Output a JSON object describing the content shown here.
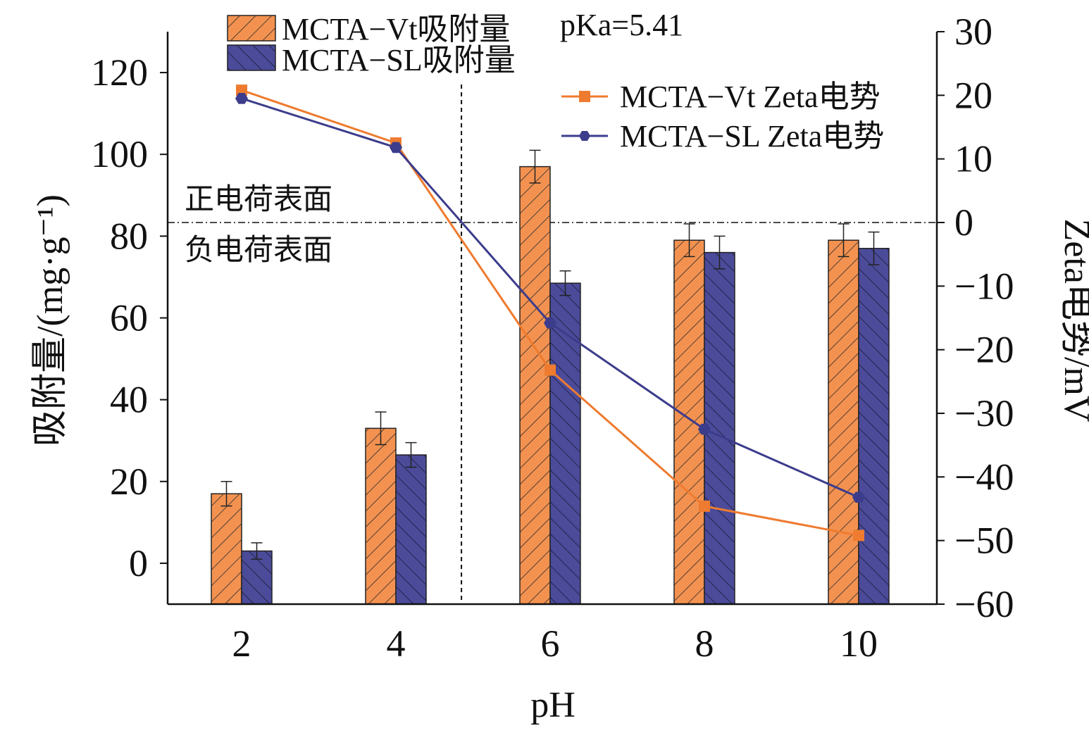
{
  "chart_data": {
    "type": "bar",
    "xlabel": "pH",
    "ylabel_left": "吸附量/(mg·g⁻¹)",
    "ylabel_right": "Zeta电势/mV",
    "categories": [
      "2",
      "4",
      "6",
      "8",
      "10"
    ],
    "x_values": [
      2,
      4,
      6,
      8,
      10
    ],
    "ylim_left": [
      -10,
      130
    ],
    "ylim_right": [
      -60,
      30
    ],
    "yticks_left": [
      0,
      20,
      40,
      60,
      80,
      100,
      120
    ],
    "yticks_right": [
      -60,
      -50,
      -40,
      -30,
      -20,
      -10,
      0,
      10,
      20,
      30
    ],
    "yticks_right_labels": [
      "−60",
      "−50",
      "−40",
      "−30",
      "−20",
      "−10",
      "0",
      "10",
      "20",
      "30"
    ],
    "bar_series": [
      {
        "name": "MCTA−Vt吸附量",
        "values": [
          17,
          33,
          97,
          79,
          79
        ],
        "errors": [
          3,
          4,
          4,
          4,
          4
        ],
        "color": "#f39250"
      },
      {
        "name": "MCTA−SL吸附量",
        "values": [
          3,
          26.5,
          68.5,
          76,
          77
        ],
        "errors": [
          2,
          3,
          3,
          4,
          4
        ],
        "color": "#4b4b9a"
      }
    ],
    "line_series": [
      {
        "name": "MCTA−Vt Zeta电势",
        "values": [
          20.8,
          12.5,
          -23.2,
          -44.6,
          -49.2
        ],
        "color": "#ee7b2f",
        "marker": "square"
      },
      {
        "name": "MCTA−SL Zeta电势",
        "values": [
          19.5,
          11.8,
          -15.8,
          -32.5,
          -43.2
        ],
        "color": "#3c3c8c",
        "marker": "hexagon"
      }
    ],
    "reference_lines": [
      {
        "orientation": "vertical",
        "x": 4.85,
        "style": "dashed"
      },
      {
        "orientation": "horizontal",
        "zeta": 0,
        "style": "dash-dot"
      }
    ],
    "annotations": {
      "pka": "pKa=5.41",
      "positive_surface": "正电荷表面",
      "negative_surface": "负电荷表面"
    },
    "grid": false,
    "legend_bars_position": "top-left",
    "legend_lines_position": "top-right"
  }
}
